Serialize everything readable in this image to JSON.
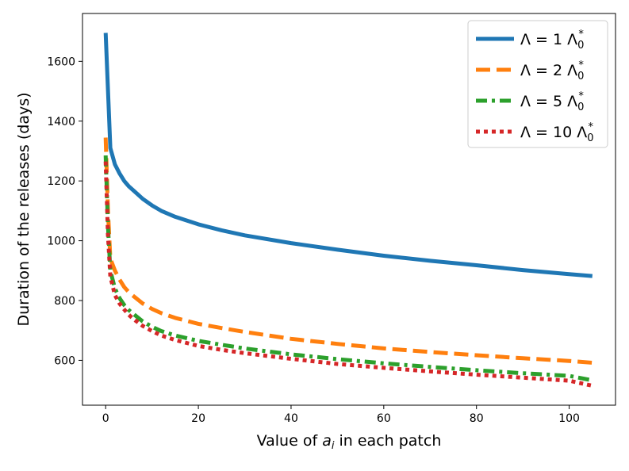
{
  "chart_data": {
    "type": "line",
    "title": "",
    "xlabel": "Value of $a_i$ in each patch",
    "xlabel_main": "Value of ",
    "xlabel_var": "a",
    "xlabel_sub": "i",
    "xlabel_rest": " in each patch",
    "ylabel": "Duration of the releases (days)",
    "xlim": [
      -5,
      110
    ],
    "ylim": [
      450,
      1760
    ],
    "xticks": [
      0,
      20,
      40,
      60,
      80,
      100
    ],
    "yticks": [
      600,
      800,
      1000,
      1200,
      1400,
      1600
    ],
    "grid": false,
    "legend_position": "top-right",
    "series": [
      {
        "name": "Λ = 1 Λ0*",
        "legend_prefix": "Λ = 1 Λ",
        "legend_sub": "0",
        "legend_sup": "*",
        "color": "#1f77b4",
        "style": "solid",
        "x": [
          0,
          1,
          2,
          3,
          4,
          5,
          6,
          8,
          10,
          12,
          15,
          20,
          25,
          30,
          40,
          50,
          60,
          70,
          80,
          90,
          100,
          105
        ],
        "values": [
          1695,
          1310,
          1255,
          1225,
          1200,
          1182,
          1168,
          1140,
          1118,
          1100,
          1080,
          1055,
          1035,
          1018,
          992,
          970,
          950,
          933,
          918,
          902,
          888,
          882
        ]
      },
      {
        "name": "Λ = 2 Λ0*",
        "legend_prefix": "Λ = 2 Λ",
        "legend_sub": "0",
        "legend_sup": "*",
        "color": "#ff7f0e",
        "style": "dashed",
        "x": [
          0,
          0.5,
          1,
          2,
          3,
          4,
          5,
          6,
          8,
          10,
          12,
          15,
          20,
          25,
          30,
          40,
          50,
          60,
          70,
          80,
          90,
          100,
          105
        ],
        "values": [
          1345,
          1100,
          940,
          900,
          870,
          845,
          828,
          815,
          790,
          772,
          758,
          742,
          722,
          708,
          695,
          672,
          655,
          640,
          628,
          617,
          607,
          598,
          592
        ]
      },
      {
        "name": "Λ = 5 Λ0*",
        "legend_prefix": "Λ = 5 Λ",
        "legend_sub": "0",
        "legend_sup": "*",
        "color": "#2ca02c",
        "style": "dashdot",
        "x": [
          0,
          0.5,
          1,
          2,
          3,
          4,
          5,
          6,
          8,
          10,
          12,
          15,
          20,
          25,
          30,
          40,
          50,
          60,
          70,
          80,
          90,
          100,
          105
        ],
        "values": [
          1285,
          1050,
          900,
          840,
          808,
          785,
          768,
          755,
          730,
          712,
          698,
          683,
          665,
          652,
          640,
          620,
          604,
          590,
          578,
          567,
          557,
          548,
          533
        ]
      },
      {
        "name": "Λ = 10 Λ0*",
        "legend_prefix": "Λ = 10 Λ",
        "legend_sub": "0",
        "legend_sup": "*",
        "color": "#d62728",
        "style": "dotted",
        "x": [
          0,
          0.5,
          1,
          2,
          3,
          4,
          5,
          6,
          8,
          10,
          12,
          15,
          20,
          25,
          30,
          40,
          50,
          60,
          70,
          80,
          90,
          100,
          105
        ],
        "values": [
          1265,
          1020,
          880,
          818,
          790,
          770,
          752,
          738,
          715,
          698,
          683,
          668,
          648,
          635,
          624,
          605,
          588,
          575,
          563,
          552,
          542,
          532,
          515
        ]
      }
    ]
  }
}
